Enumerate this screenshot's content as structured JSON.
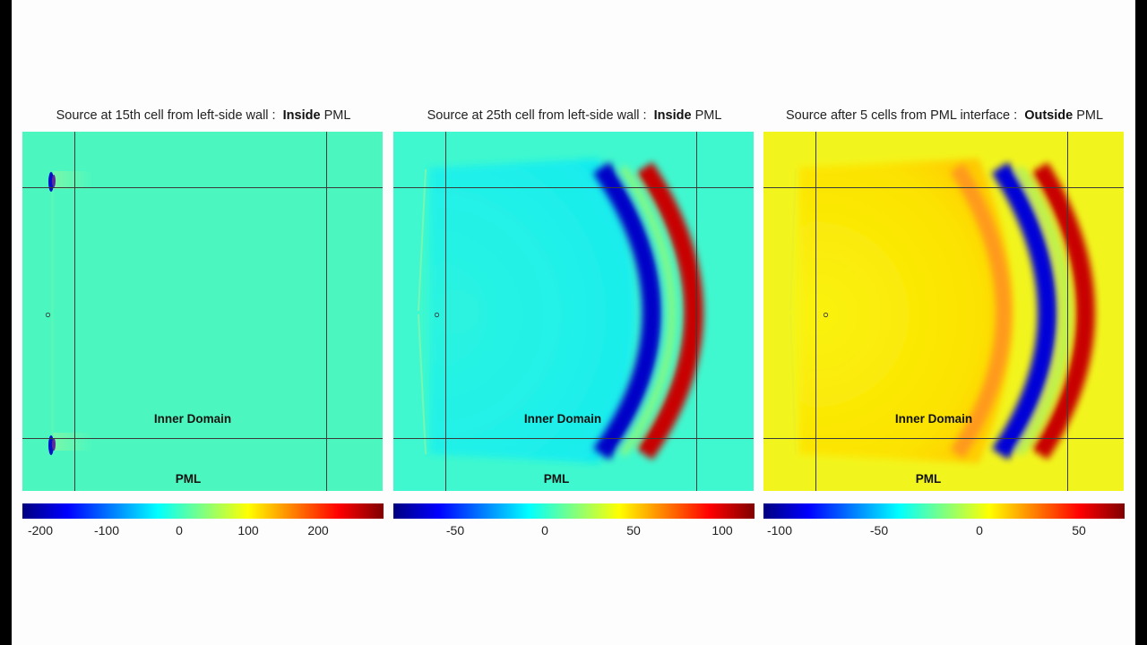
{
  "panels": [
    {
      "title_prefix": "Source at 15th cell from left-side wall :",
      "title_strong": "Inside",
      "title_suffix": "PML",
      "inner_label": "Inner Domain",
      "pml_label": "PML",
      "colorbar_ticks": [
        "-200",
        "-100",
        "0",
        "100",
        "200"
      ],
      "background": "#4cf7bf"
    },
    {
      "title_prefix": "Source at 25th cell from left-side wall :",
      "title_strong": "Inside",
      "title_suffix": "PML",
      "inner_label": "Inner Domain",
      "pml_label": "PML",
      "colorbar_ticks": [
        "-50",
        "0",
        "50",
        "100"
      ],
      "background": "#3ff8cf"
    },
    {
      "title_prefix": "Source after 5 cells from PML interface :",
      "title_strong": "Outside",
      "title_suffix": "PML",
      "inner_label": "Inner Domain",
      "pml_label": "PML",
      "colorbar_ticks": [
        "-100",
        "-50",
        "0",
        "50"
      ],
      "background": "#f2f51d"
    }
  ],
  "colormap": [
    "#00007f",
    "#0000ff",
    "#0080ff",
    "#00ffff",
    "#80ff80",
    "#ffff00",
    "#ff8000",
    "#ff0000",
    "#7f0000"
  ]
}
